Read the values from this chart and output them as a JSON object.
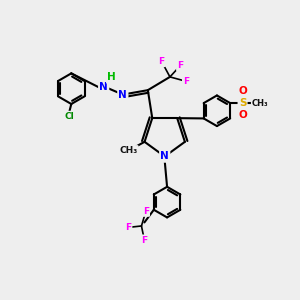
{
  "bg_color": "#eeeeee",
  "bond_color": "#000000",
  "bond_width": 1.5,
  "atom_colors": {
    "N": "#0000ff",
    "H": "#00bb00",
    "F": "#ff00ff",
    "Cl": "#008800",
    "O": "#ff0000",
    "S": "#ddaa00",
    "C": "#000000"
  },
  "font_size": 7.5,
  "fig_size": [
    3.0,
    3.0
  ],
  "dpi": 100
}
